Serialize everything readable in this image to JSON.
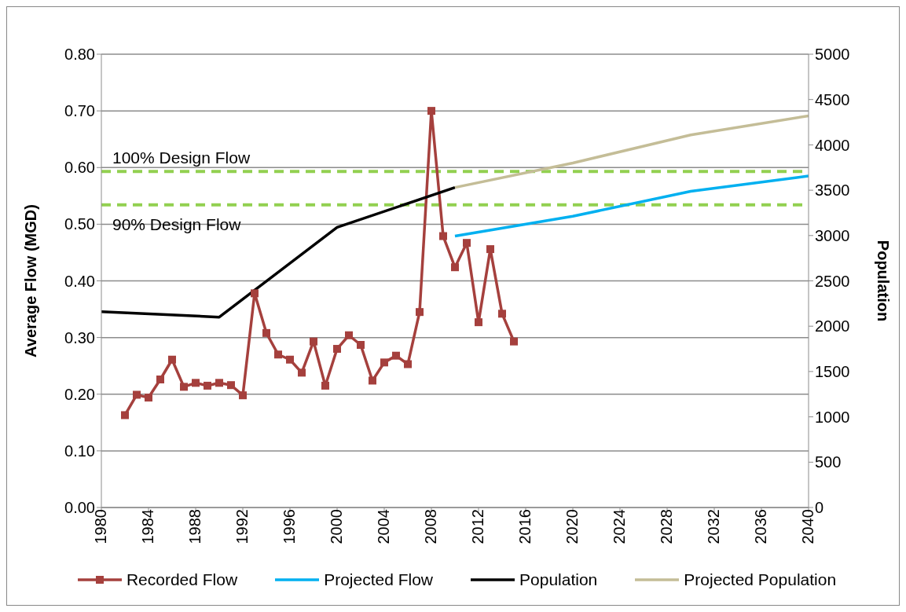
{
  "chart_data": {
    "type": "line",
    "xlabel": null,
    "ylabel": "Average Flow (MGD)",
    "y2label": "Population",
    "xlim": [
      1980,
      2040
    ],
    "xticks": [
      1980,
      1984,
      1988,
      1992,
      1996,
      2000,
      2004,
      2008,
      2012,
      2016,
      2020,
      2024,
      2028,
      2032,
      2036,
      2040
    ],
    "ylim": [
      0,
      0.8
    ],
    "yticks": [
      {
        "value": 0,
        "label": "0.00"
      },
      {
        "value": 0.1,
        "label": "0.10"
      },
      {
        "value": 0.2,
        "label": "0.20"
      },
      {
        "value": 0.3,
        "label": "0.30"
      },
      {
        "value": 0.4,
        "label": "0.40"
      },
      {
        "value": 0.5,
        "label": "0.50"
      },
      {
        "value": 0.6,
        "label": "0.60"
      },
      {
        "value": 0.7,
        "label": "0.70"
      },
      {
        "value": 0.8,
        "label": "0.80"
      }
    ],
    "y2lim": [
      0,
      5000
    ],
    "y2ticks": [
      0,
      500,
      1000,
      1500,
      2000,
      2500,
      3000,
      3500,
      4000,
      4500,
      5000
    ],
    "grid": "y",
    "legend": "bottom",
    "series": [
      {
        "name": "Recorded Flow",
        "color": "#a5403d",
        "marker": "square",
        "x": [
          1982,
          1983,
          1984,
          1985,
          1986,
          1987,
          1988,
          1989,
          1990,
          1991,
          1992,
          1993,
          1994,
          1995,
          1996,
          1997,
          1998,
          1999,
          2000,
          2001,
          2002,
          2003,
          2004,
          2005,
          2006,
          2007,
          2008,
          2009,
          2010,
          2011,
          2012,
          2013,
          2014,
          2015
        ],
        "values": [
          0.163,
          0.199,
          0.194,
          0.226,
          0.261,
          0.213,
          0.22,
          0.215,
          0.22,
          0.216,
          0.198,
          0.378,
          0.308,
          0.27,
          0.261,
          0.238,
          0.293,
          0.215,
          0.28,
          0.304,
          0.287,
          0.224,
          0.256,
          0.268,
          0.253,
          0.345,
          0.7,
          0.479,
          0.424,
          0.467,
          0.327,
          0.456,
          0.342,
          0.293
        ]
      },
      {
        "name": "Projected Flow",
        "color": "#00b0f0",
        "marker": "none",
        "x": [
          2010,
          2020,
          2030,
          2040
        ],
        "values": [
          0.479,
          0.514,
          0.558,
          0.585
        ]
      },
      {
        "name": "Population",
        "color": "#000000",
        "marker": "none",
        "axis": "y2",
        "x": [
          1980,
          1990,
          2000,
          2010
        ],
        "values": [
          2160,
          2100,
          3090,
          3530
        ]
      },
      {
        "name": "Projected Population",
        "color": "#c4bd97",
        "marker": "none",
        "axis": "y2",
        "x": [
          2010,
          2020,
          2030,
          2040
        ],
        "values": [
          3530,
          3800,
          4110,
          4320
        ]
      }
    ],
    "ref_lines": [
      {
        "axis": "y",
        "value": 0.593,
        "label": "100% Design Flow",
        "color": "#92d050",
        "line_style": "dashed"
      },
      {
        "axis": "y",
        "value": 0.534,
        "label": "90% Design Flow",
        "color": "#92d050",
        "line_style": "dashed"
      }
    ]
  }
}
